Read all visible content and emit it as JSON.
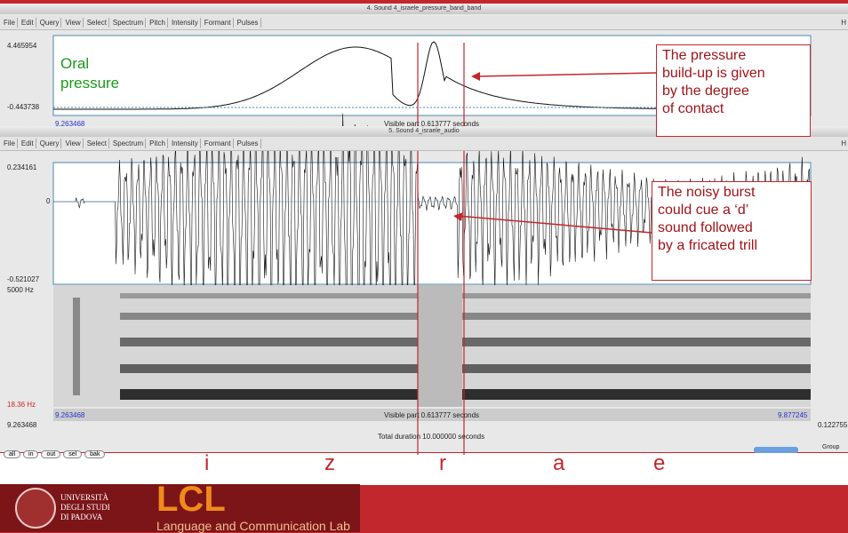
{
  "window1": {
    "title": "4. Sound 4_israele_pressure_band_band",
    "menu": [
      "File",
      "Edit",
      "Query",
      "View",
      "Select",
      "Spectrum",
      "Pitch",
      "Intensity",
      "Formant",
      "Pulses"
    ],
    "menu_right": "H",
    "y_max": "4.465954",
    "y_min": "-0.443738",
    "x_start": "9.263468",
    "visible": "Visible part 0.613777 seconds",
    "label_line1": "Oral",
    "label_line2": "pressure"
  },
  "window2": {
    "title": "5. Sound 4_israele_audio",
    "menu": [
      "File",
      "Edit",
      "Query",
      "View",
      "Select",
      "Spectrum",
      "Pitch",
      "Intensity",
      "Formant",
      "Pulses"
    ],
    "menu_right": "H",
    "wave_max": "0.234161",
    "wave_zero": "0",
    "wave_min": "-0.521027",
    "freq_max": "5000 Hz",
    "freq_min": "18.36 Hz",
    "x_start": "9.263468",
    "visible": "Visible part 0.613777 seconds",
    "x_end": "9.877245",
    "window_start": "9.263468",
    "window_end": "0.122755",
    "total": "Total duration 10.000000 seconds",
    "buttons": [
      "all",
      "in",
      "out",
      "sel",
      "bak"
    ],
    "group": "Group"
  },
  "callouts": [
    {
      "lines": [
        "The pressure",
        "build-up is given",
        "by the degree",
        "of contact"
      ]
    },
    {
      "lines": [
        "The noisy burst",
        "could cue a ‘d’",
        "sound followed",
        "by a fricated trill"
      ]
    }
  ],
  "segments": [
    "i",
    "z",
    "r",
    "a",
    "e"
  ],
  "footer": {
    "university": [
      "UNIVERSITÀ",
      "DEGLI STUDI",
      "DI PADOVA"
    ],
    "lab_logo": "LCL",
    "lab_name": "Language and Communication Lab"
  }
}
